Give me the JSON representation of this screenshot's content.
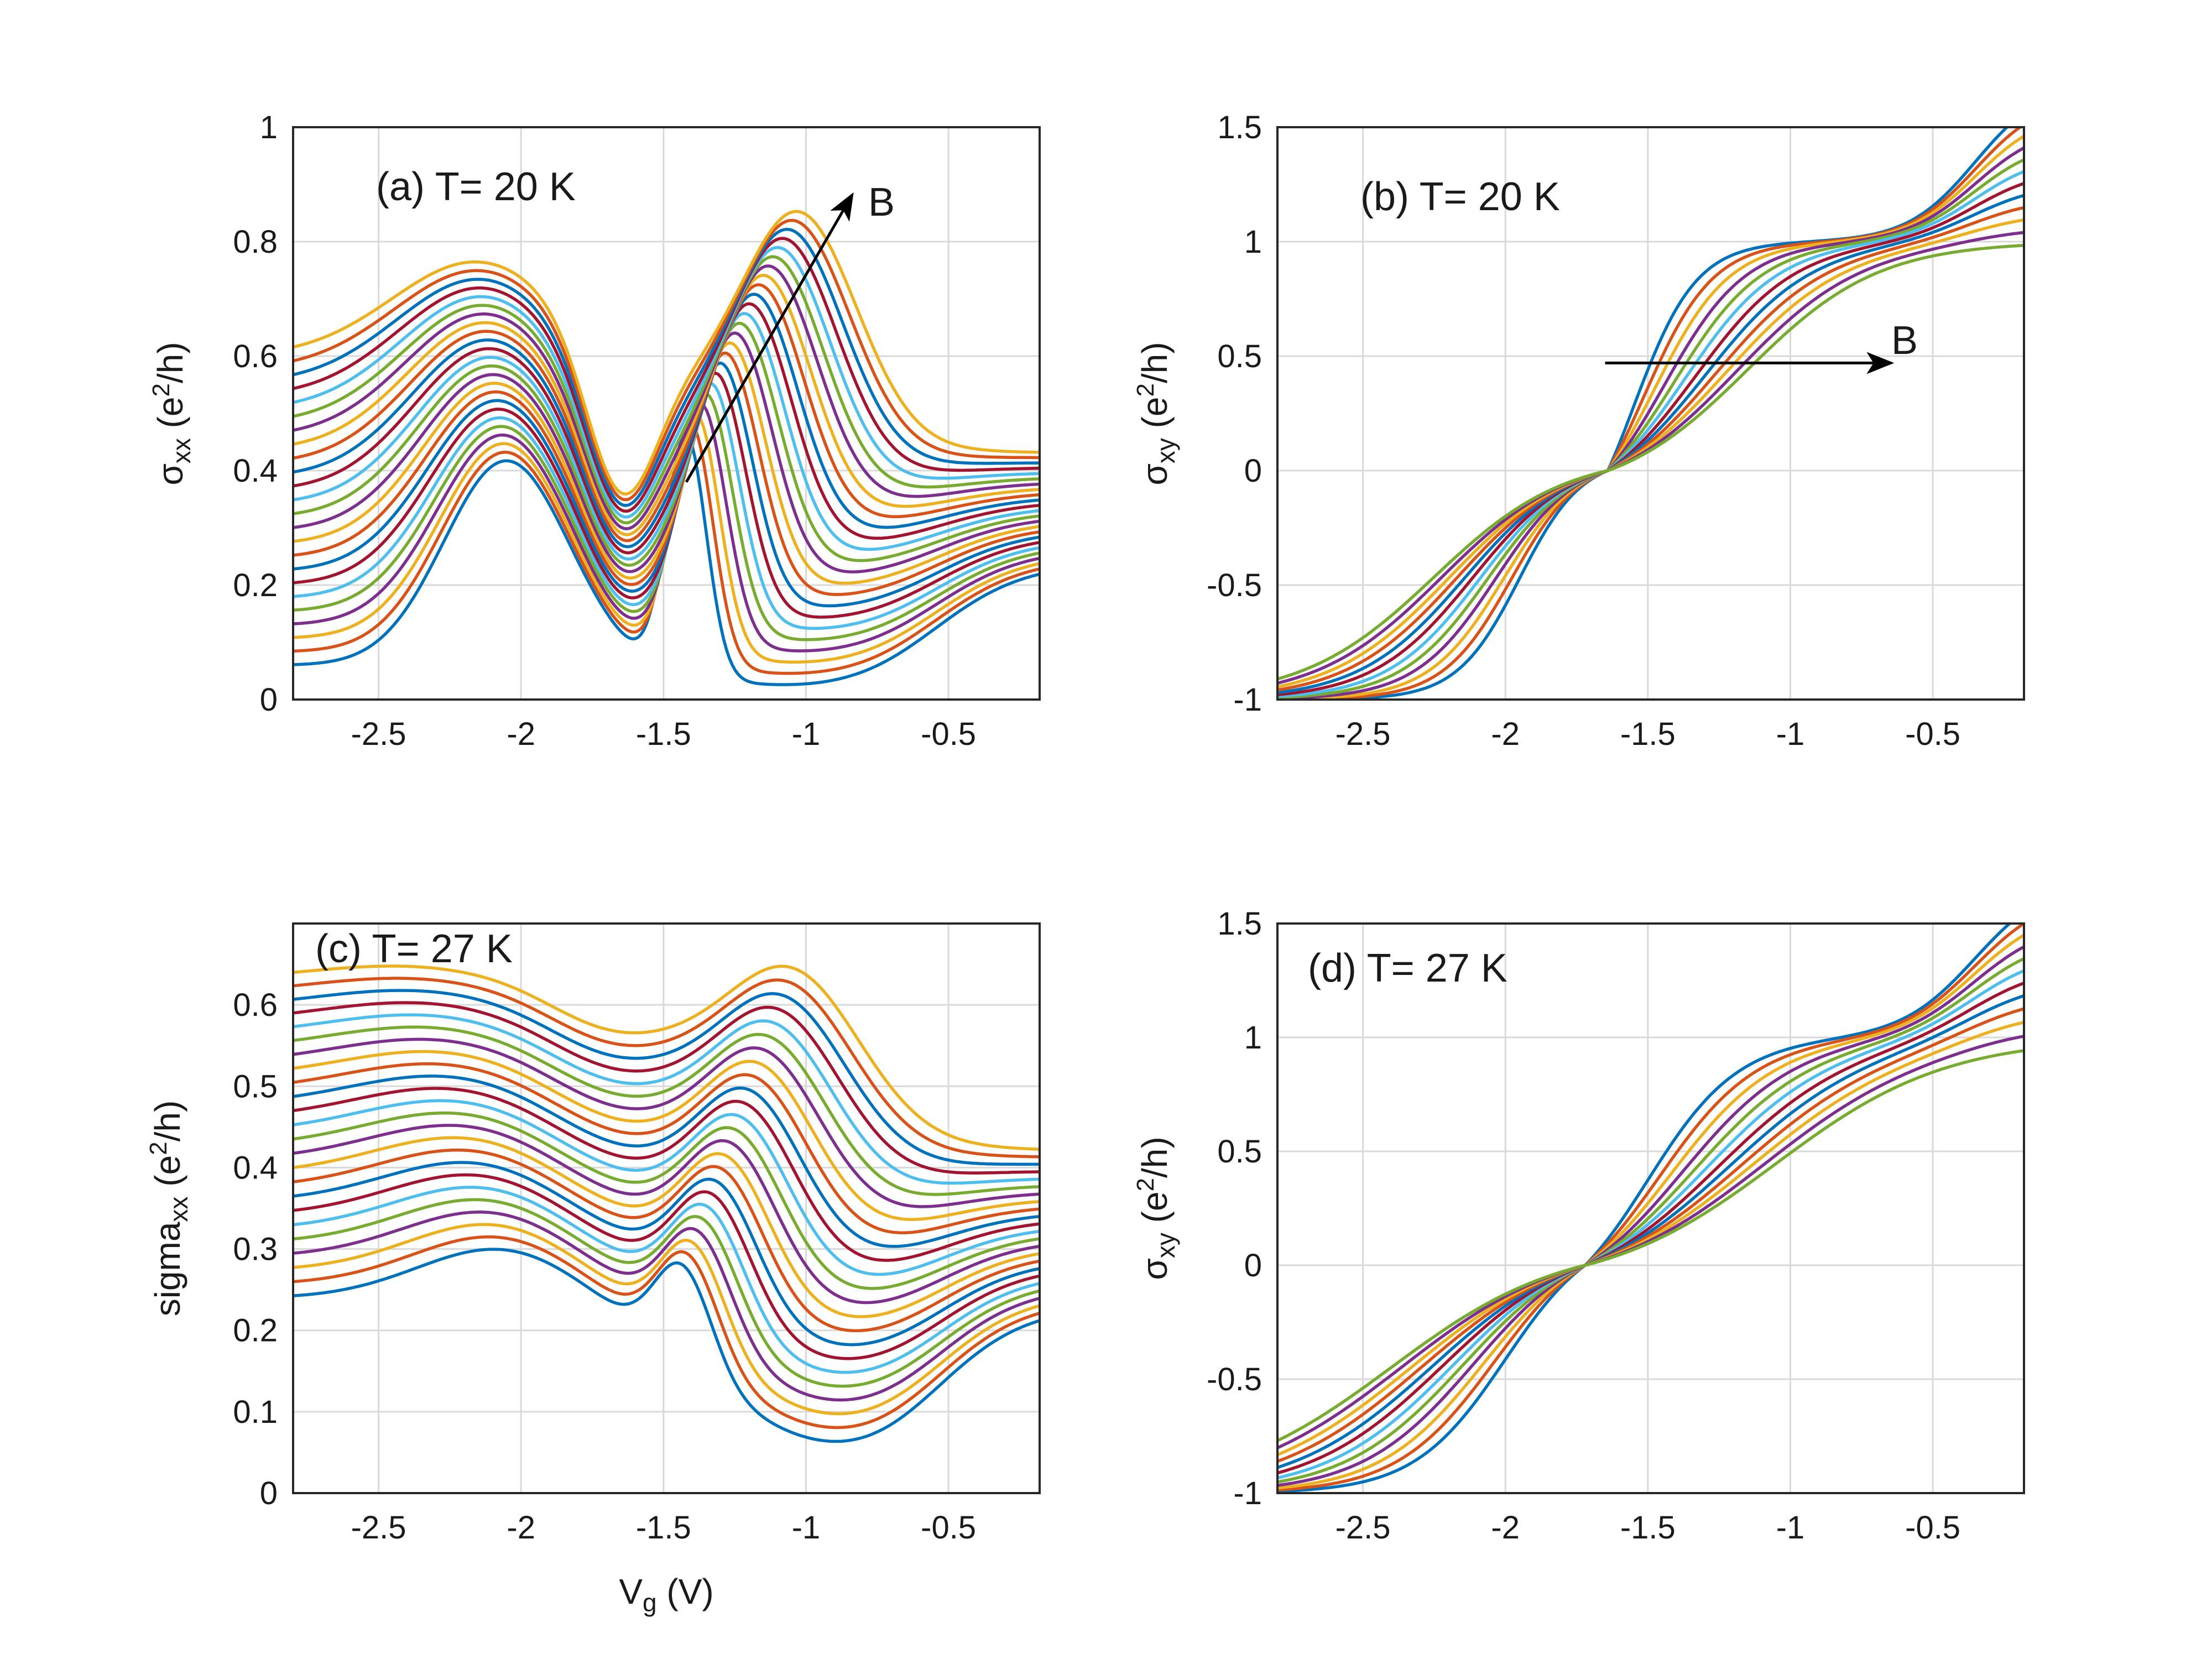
{
  "figure": {
    "palette": [
      "#0072BD",
      "#D95319",
      "#EDB120",
      "#7E2F8E",
      "#77AC30",
      "#4DBEEE",
      "#A2142F"
    ],
    "text_color": "#1a1a1a",
    "grid_color": "#d9d9d9"
  },
  "chart_data": [
    {
      "id": "a",
      "type": "line",
      "title": "",
      "annotation": "(a) T= 20 K",
      "arrow_label": "B",
      "xlabel": "",
      "ylabel": {
        "symbol": "σ",
        "sub": "xx",
        "unit_open": " (e",
        "sup": "2",
        "unit_close": "/h)"
      },
      "xlim": [
        -2.8,
        -0.18
      ],
      "ylim": [
        0,
        1
      ],
      "xticks": [
        -2.5,
        -2,
        -1.5,
        -1,
        -0.5
      ],
      "xticklabels": [
        "-2.5",
        "-2",
        "-1.5",
        "-1",
        "-0.5"
      ],
      "yticks": [
        0,
        0.2,
        0.4,
        0.6,
        0.8,
        1
      ],
      "yticklabels": [
        "0",
        "0.2",
        "0.4",
        "0.6",
        "0.8",
        "1"
      ],
      "grid": true,
      "n_series": 24,
      "arrow": {
        "from": [
          -1.42,
          0.38
        ],
        "to": [
          -0.84,
          0.88
        ]
      },
      "family": {
        "model": "sxx",
        "first": {
          "base_left": 0.06,
          "base_right": 0.0,
          "right_rise": 0.24,
          "left_hump": 0.36,
          "lh_center": -2.05,
          "lh_width": 0.22,
          "dip_center": -1.67,
          "dip_depth": 0.0,
          "dip_width": 0.12,
          "peak": 0.42,
          "peak_center": -1.42,
          "peak_width": 0.07,
          "trough_center": -0.9,
          "trough_width": 0.25,
          "trough_depth": 0.0
        },
        "last": {
          "base_left": 0.6,
          "base_right": 0.43,
          "right_rise": 0.0,
          "left_hump": 0.17,
          "lh_center": -2.15,
          "lh_width": 0.3,
          "dip_center": -1.65,
          "dip_depth": 0.25,
          "dip_width": 0.12,
          "peak": 0.38,
          "peak_center": -1.02,
          "peak_width": 0.2,
          "trough_center": -0.9,
          "trough_width": 0.25,
          "trough_depth": 0.0
        }
      }
    },
    {
      "id": "b",
      "type": "line",
      "title": "",
      "annotation": "(b) T= 20 K",
      "arrow_label": "B",
      "xlabel": "",
      "ylabel": {
        "symbol": "σ",
        "sub": "xy",
        "unit_open": " (e",
        "sup": "2",
        "unit_close": "/h)"
      },
      "xlim": [
        -2.8,
        -0.18
      ],
      "ylim": [
        -1,
        1.5
      ],
      "xticks": [
        -2.5,
        -2,
        -1.5,
        -1,
        -0.5
      ],
      "xticklabels": [
        "-2.5",
        "-2",
        "-1.5",
        "-1",
        "-0.5"
      ],
      "yticks": [
        -1,
        -0.5,
        0,
        0.5,
        1,
        1.5
      ],
      "yticklabels": [
        "-1",
        "-0.5",
        "0",
        "0.5",
        "1",
        "1.5"
      ],
      "grid": true,
      "n_series": 12,
      "arrow": {
        "from": [
          -1.65,
          0.47
        ],
        "to": [
          -0.65,
          0.47
        ]
      },
      "family": {
        "model": "sxy",
        "cross": -1.64,
        "first": {
          "step_up": -1.55,
          "step_dn": -1.95,
          "width": 0.11,
          "rise_center": -0.35,
          "rise_amp": 0.7,
          "rise_width": 0.12
        },
        "last": {
          "step_up": -1.15,
          "step_dn": -2.25,
          "width": 0.23,
          "rise_center": -0.35,
          "rise_amp": 0.0,
          "rise_width": 0.12
        }
      }
    },
    {
      "id": "c",
      "type": "line",
      "title": "",
      "annotation": "(c) T= 27 K",
      "xlabel": {
        "text": "V",
        "sub": "g",
        "unit": " (V)"
      },
      "ylabel": {
        "symbol": "sigma",
        "sub": "xx",
        "unit_open": " (e",
        "sup": "2",
        "unit_close": "/h)"
      },
      "xlim": [
        -2.8,
        -0.18
      ],
      "ylim": [
        0,
        0.7
      ],
      "xticks": [
        -2.5,
        -2,
        -1.5,
        -1,
        -0.5
      ],
      "xticklabels": [
        "-2.5",
        "-2",
        "-1.5",
        "-1",
        "-0.5"
      ],
      "yticks": [
        0,
        0.1,
        0.2,
        0.3,
        0.4,
        0.5,
        0.6
      ],
      "yticklabels": [
        "0",
        "0.1",
        "0.2",
        "0.3",
        "0.4",
        "0.5",
        "0.6"
      ],
      "grid": true,
      "n_series": 24,
      "family": {
        "model": "sxx",
        "first": {
          "base_left": 0.24,
          "base_right": 0.0,
          "right_rise": 0.23,
          "left_hump": 0.07,
          "lh_center": -2.05,
          "lh_width": 0.3,
          "dip_center": -1.72,
          "dip_depth": 0.0,
          "dip_width": 0.2,
          "peak": 0.12,
          "peak_center": -1.43,
          "peak_width": 0.1,
          "trough_center": -0.88,
          "trough_width": 0.22,
          "trough_depth": 0.0
        },
        "last": {
          "base_left": 0.63,
          "base_right": 0.42,
          "right_rise": 0.0,
          "left_hump": 0.02,
          "lh_center": -2.4,
          "lh_width": 0.35,
          "dip_center": -1.72,
          "dip_depth": 0.03,
          "dip_width": 0.2,
          "peak": 0.17,
          "peak_center": -1.03,
          "peak_width": 0.23,
          "trough_center": -0.88,
          "trough_width": 0.22,
          "trough_depth": 0.0
        }
      }
    },
    {
      "id": "d",
      "type": "line",
      "title": "",
      "annotation": "(d) T= 27 K",
      "xlabel": "",
      "ylabel": {
        "symbol": "σ",
        "sub": "xy",
        "unit_open": " (e",
        "sup": "2",
        "unit_close": "/h)"
      },
      "xlim": [
        -2.8,
        -0.18
      ],
      "ylim": [
        -1,
        1.5
      ],
      "xticks": [
        -2.5,
        -2,
        -1.5,
        -1,
        -0.5
      ],
      "xticklabels": [
        "-2.5",
        "-2",
        "-1.5",
        "-1",
        "-0.5"
      ],
      "yticks": [
        -1,
        -0.5,
        0,
        0.5,
        1,
        1.5
      ],
      "yticklabels": [
        "-1",
        "-0.5",
        "0",
        "0.5",
        "1",
        "1.5"
      ],
      "grid": true,
      "n_series": 12,
      "family": {
        "model": "sxy",
        "cross": -1.72,
        "first": {
          "step_up": -1.5,
          "step_dn": -2.0,
          "width": 0.16,
          "rise_center": -0.35,
          "rise_amp": 0.7,
          "rise_width": 0.13
        },
        "last": {
          "step_up": -1.05,
          "step_dn": -2.4,
          "width": 0.3,
          "rise_center": -0.35,
          "rise_amp": 0.0,
          "rise_width": 0.13
        }
      }
    }
  ]
}
